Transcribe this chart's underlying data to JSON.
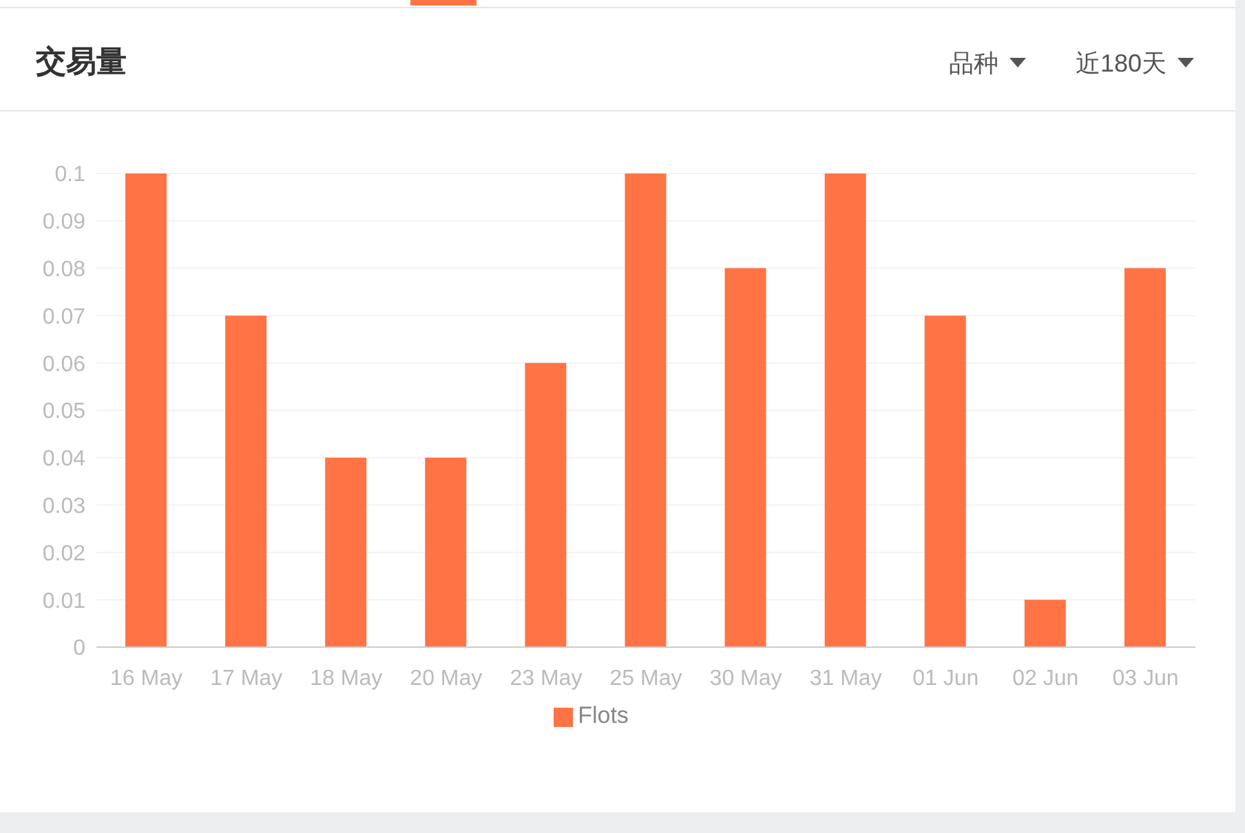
{
  "chart_data": {
    "type": "bar",
    "title": "交易量",
    "annotations": [
      "品种",
      "近180天"
    ],
    "categories": [
      "16 May",
      "17 May",
      "18 May",
      "20 May",
      "23 May",
      "25 May",
      "30 May",
      "31 May",
      "01 Jun",
      "02 Jun",
      "03 Jun"
    ],
    "series": [
      {
        "name": "Flots",
        "color": "#ff7344",
        "values": [
          0.1,
          0.07,
          0.04,
          0.04,
          0.06,
          0.1,
          0.08,
          0.1,
          0.07,
          0.01,
          0.08
        ]
      }
    ],
    "ylim": [
      0,
      0.1
    ],
    "yticks": [
      0,
      0.01,
      0.02,
      0.03,
      0.04,
      0.05,
      0.06,
      0.07,
      0.08,
      0.09,
      0.1
    ],
    "grid": "y",
    "legend": "bottom"
  }
}
